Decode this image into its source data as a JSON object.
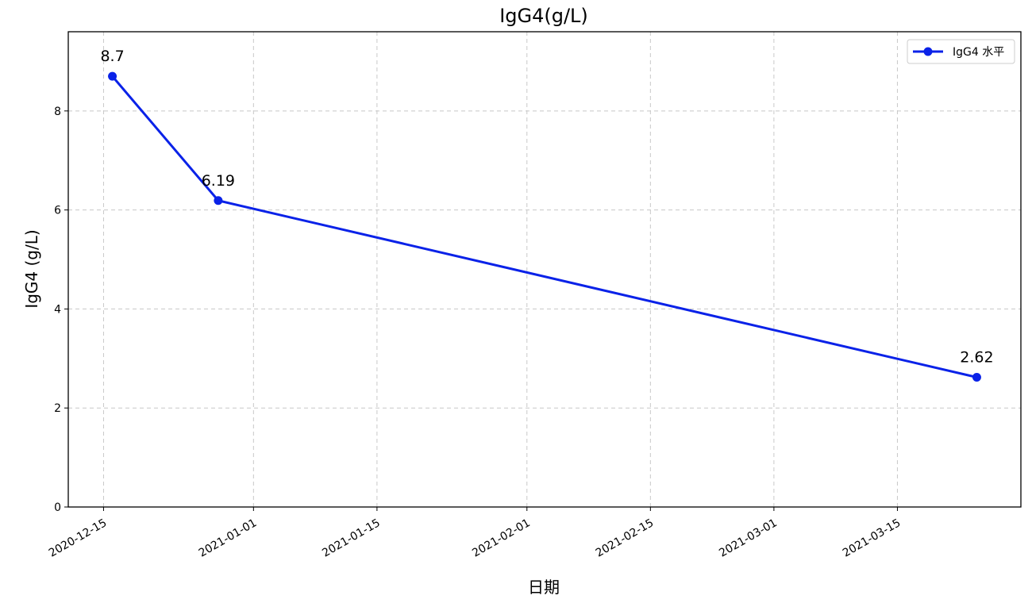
{
  "chart_data": {
    "type": "line",
    "title": "IgG4(g/L)",
    "xlabel": "日期",
    "ylabel": "IgG4 (g/L)",
    "x_axis_type": "date",
    "x_ticks": [
      "2020-12-15",
      "2021-01-01",
      "2021-01-15",
      "2021-02-01",
      "2021-02-15",
      "2021-03-01",
      "2021-03-15"
    ],
    "xlim": [
      "2020-12-11",
      "2021-03-29"
    ],
    "y_ticks": [
      0,
      2,
      4,
      6,
      8
    ],
    "ylim": [
      0,
      9.6
    ],
    "grid": true,
    "grid_style": "dashed",
    "legend_position": "top-right",
    "series": [
      {
        "name": "IgG4 水平",
        "color": "#0a22e8",
        "marker": "circle",
        "points": [
          {
            "x": "2020-12-16",
            "y": 8.7,
            "label": "8.7"
          },
          {
            "x": "2020-12-28",
            "y": 6.19,
            "label": "6.19"
          },
          {
            "x": "2021-03-24",
            "y": 2.62,
            "label": "2.62"
          }
        ]
      }
    ]
  }
}
